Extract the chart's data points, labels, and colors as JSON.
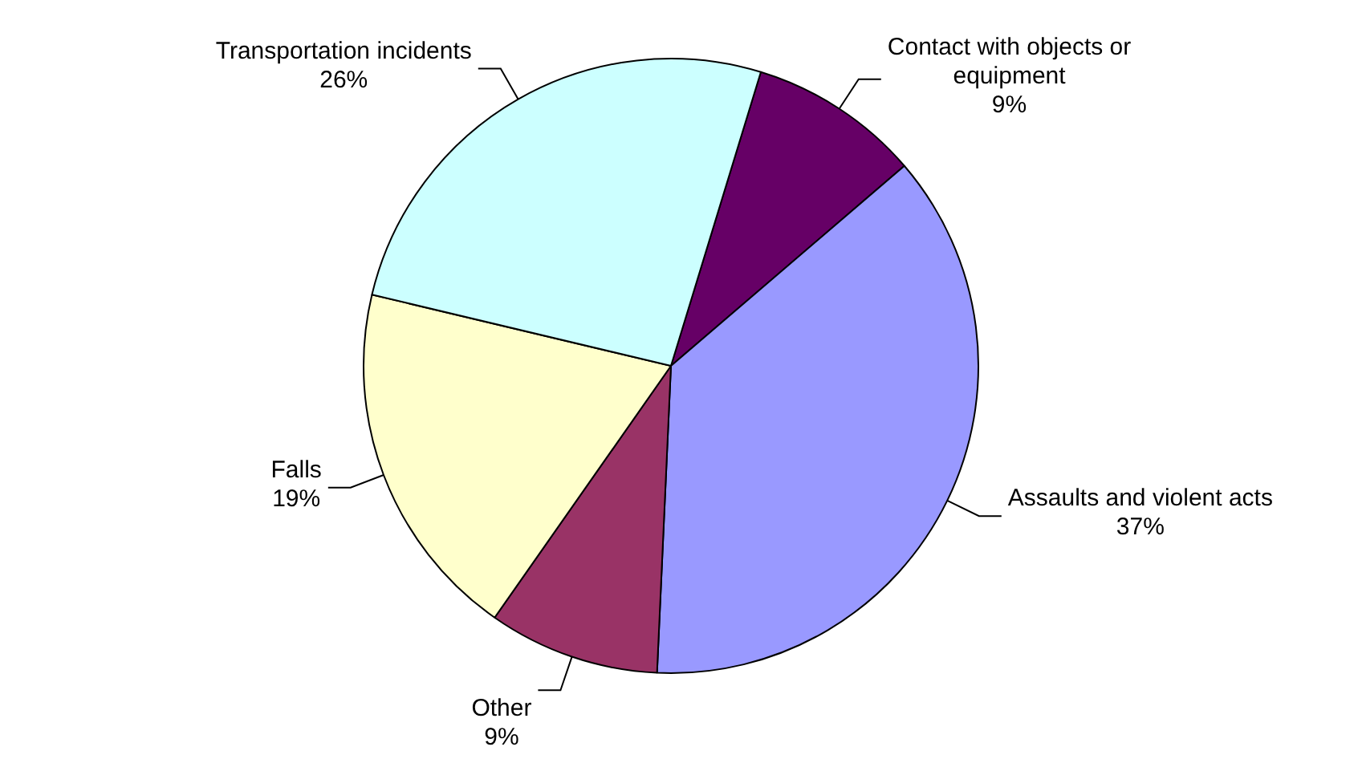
{
  "chart_data": {
    "type": "pie",
    "categories": [
      "Contact with objects or equipment",
      "Assaults and violent acts",
      "Other",
      "Falls",
      "Transportation incidents"
    ],
    "values": [
      9,
      37,
      9,
      19,
      26
    ],
    "value_labels": [
      "9%",
      "37%",
      "9%",
      "19%",
      "26%"
    ],
    "colors": [
      "#660066",
      "#9999ff",
      "#993366",
      "#ffffcc",
      "#ccffff"
    ],
    "legend": false
  }
}
